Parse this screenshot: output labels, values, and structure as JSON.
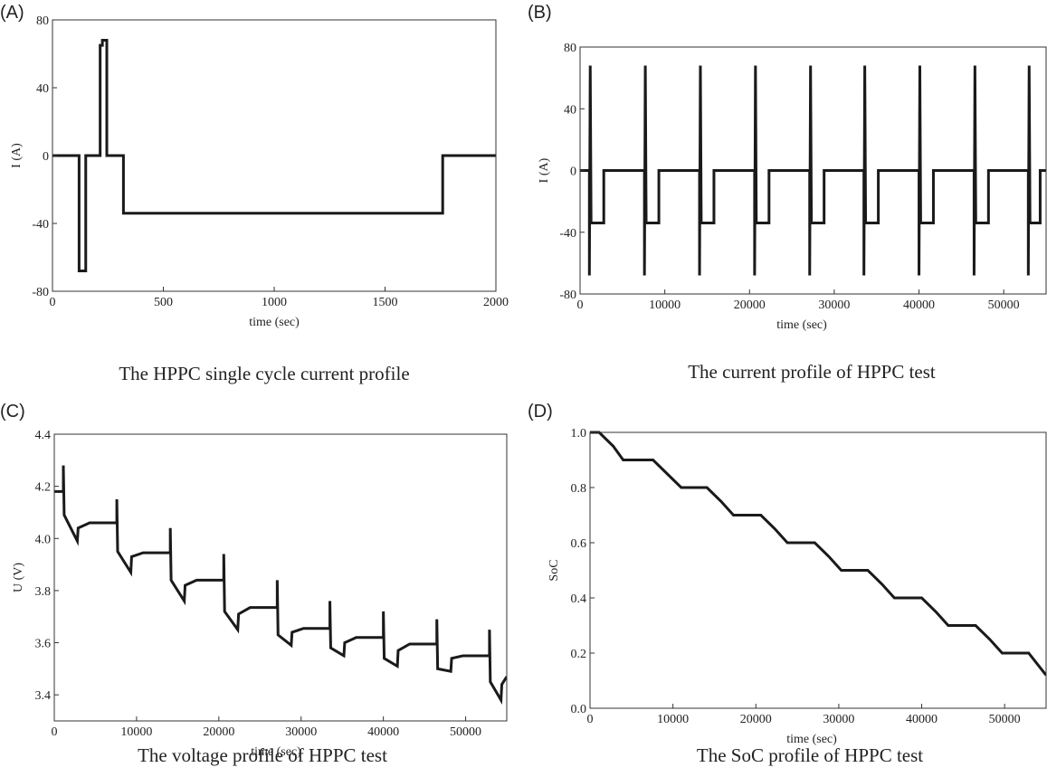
{
  "chart_data": [
    {
      "type": "line",
      "panel": "(A)",
      "caption": "The HPPC single cycle current profile",
      "xlabel": "time (sec)",
      "ylabel": "I (A)",
      "color": "#1a1a1a",
      "x": [
        0,
        120,
        120,
        150,
        150,
        215,
        215,
        225,
        225,
        245,
        245,
        320,
        320,
        1760,
        1760,
        2000
      ],
      "values": [
        0,
        0,
        -68,
        -68,
        0,
        0,
        65,
        65,
        68,
        68,
        0,
        0,
        -34,
        -34,
        0,
        0
      ],
      "xlim": [
        0,
        2000
      ],
      "ylim": [
        -80,
        80
      ],
      "xticks": [
        0,
        500,
        1000,
        1500,
        2000
      ],
      "yticks": [
        -80,
        -40,
        0,
        40,
        80
      ]
    },
    {
      "type": "line",
      "panel": "(B)",
      "caption": "The current profile of HPPC test",
      "xlabel": "time (sec)",
      "ylabel": "I (A)",
      "color": "#1a1a1a",
      "x": [
        0,
        1100,
        1100,
        1200,
        1300,
        2800,
        2800,
        7600,
        7600,
        7700,
        7800,
        9300,
        9300,
        14100,
        14100,
        14200,
        14300,
        15800,
        15800,
        20600,
        20600,
        20700,
        20800,
        22300,
        22300,
        27100,
        27100,
        27200,
        27300,
        28800,
        28800,
        33500,
        33500,
        33600,
        33700,
        35200,
        35200,
        40000,
        40000,
        40100,
        40200,
        41700,
        41700,
        46500,
        46500,
        46600,
        46700,
        48200,
        48200,
        52900,
        52900,
        53000,
        53100,
        54300,
        54300,
        55000
      ],
      "values": [
        0,
        0,
        -68,
        68,
        -34,
        -34,
        0,
        0,
        -68,
        68,
        -34,
        -34,
        0,
        0,
        -68,
        68,
        -34,
        -34,
        0,
        0,
        -68,
        68,
        -34,
        -34,
        0,
        0,
        -68,
        68,
        -34,
        -34,
        0,
        0,
        -68,
        68,
        -34,
        -34,
        0,
        0,
        -68,
        68,
        -34,
        -34,
        0,
        0,
        -68,
        68,
        -34,
        -34,
        0,
        0,
        -68,
        68,
        -34,
        -34,
        0,
        0
      ],
      "xlim": [
        0,
        55000
      ],
      "ylim": [
        -80,
        80
      ],
      "xticks": [
        0,
        10000,
        20000,
        30000,
        40000,
        50000
      ],
      "yticks": [
        -80,
        -40,
        0,
        40,
        80
      ]
    },
    {
      "type": "line",
      "panel": "(C)",
      "caption": "The voltage profile of HPPC test",
      "xlabel": "time (sec)",
      "ylabel": "U (V)",
      "color": "#1a1a1a",
      "x": [
        0,
        1100,
        1100,
        1200,
        2800,
        2900,
        4300,
        7600,
        7600,
        7700,
        9300,
        9400,
        10800,
        14100,
        14100,
        14200,
        15800,
        15900,
        17300,
        20600,
        20600,
        20700,
        22300,
        22400,
        23800,
        27100,
        27100,
        27200,
        28800,
        28900,
        30300,
        33500,
        33500,
        33600,
        35200,
        35300,
        36700,
        40000,
        40000,
        40100,
        41700,
        41800,
        43200,
        46500,
        46500,
        46600,
        48200,
        48300,
        49700,
        52900,
        52900,
        53000,
        54300,
        54400,
        55000
      ],
      "values": [
        4.18,
        4.18,
        4.28,
        4.09,
        3.99,
        4.04,
        4.06,
        4.06,
        4.15,
        3.95,
        3.87,
        3.93,
        3.945,
        3.945,
        4.04,
        3.84,
        3.76,
        3.82,
        3.84,
        3.84,
        3.94,
        3.72,
        3.65,
        3.71,
        3.735,
        3.735,
        3.84,
        3.63,
        3.59,
        3.64,
        3.655,
        3.655,
        3.76,
        3.58,
        3.55,
        3.6,
        3.62,
        3.62,
        3.72,
        3.54,
        3.51,
        3.57,
        3.595,
        3.595,
        3.69,
        3.5,
        3.49,
        3.54,
        3.55,
        3.55,
        3.65,
        3.45,
        3.38,
        3.44,
        3.47
      ],
      "xlim": [
        0,
        55000
      ],
      "ylim": [
        3.3,
        4.4
      ],
      "xticks": [
        0,
        10000,
        20000,
        30000,
        40000,
        50000
      ],
      "yticks": [
        3.4,
        3.6,
        3.8,
        {
          "value": 4,
          "label": "4.0"
        },
        4.2,
        4.4
      ]
    },
    {
      "type": "line",
      "panel": "(D)",
      "caption": "The SoC profile of HPPC test",
      "xlabel": "time (sec)",
      "ylabel": "SoC",
      "color": "#1a1a1a",
      "x": [
        0,
        1100,
        2800,
        4000,
        7600,
        9300,
        11000,
        14100,
        15800,
        17300,
        20600,
        22300,
        23800,
        27100,
        28800,
        30300,
        33500,
        35200,
        36700,
        40000,
        41700,
        43200,
        46500,
        48200,
        49700,
        52900,
        55000
      ],
      "values": [
        1,
        1,
        0.95,
        0.9,
        0.9,
        0.85,
        0.8,
        0.8,
        0.75,
        0.7,
        0.7,
        0.65,
        0.6,
        0.6,
        0.55,
        0.5,
        0.5,
        0.45,
        0.4,
        0.4,
        0.35,
        0.3,
        0.3,
        0.25,
        0.2,
        0.2,
        0.12
      ],
      "xlim": [
        0,
        55000
      ],
      "ylim": [
        0,
        1
      ],
      "xticks": [
        0,
        10000,
        20000,
        30000,
        40000,
        50000
      ],
      "yticks": [
        {
          "value": 0,
          "label": "0.0"
        },
        0.2,
        0.4,
        0.6,
        0.8,
        {
          "value": 1,
          "label": "1.0"
        }
      ]
    }
  ]
}
